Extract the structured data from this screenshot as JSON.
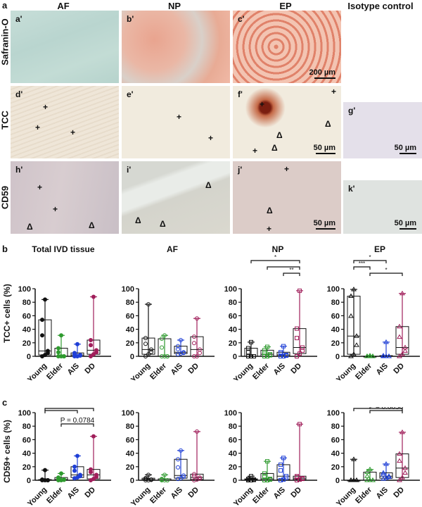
{
  "figure": {
    "panel_a": {
      "letter": "a",
      "columns": [
        "AF",
        "NP",
        "EP",
        "Isotype control"
      ],
      "rows": [
        "Safranin-O",
        "TCC",
        "CD59"
      ],
      "images": [
        {
          "id": "a'",
          "row": "Safranin-O",
          "col": "AF",
          "scale": ""
        },
        {
          "id": "b'",
          "row": "Safranin-O",
          "col": "NP",
          "scale": ""
        },
        {
          "id": "c'",
          "row": "Safranin-O",
          "col": "EP",
          "scale": "200 µm"
        },
        {
          "id": "d'",
          "row": "TCC",
          "col": "AF",
          "scale": ""
        },
        {
          "id": "e'",
          "row": "TCC",
          "col": "NP",
          "scale": ""
        },
        {
          "id": "f'",
          "row": "TCC",
          "col": "EP",
          "scale": "50 µm"
        },
        {
          "id": "g'",
          "row": "TCC",
          "col": "Isotype control",
          "scale": "50 µm"
        },
        {
          "id": "h'",
          "row": "CD59",
          "col": "AF",
          "scale": ""
        },
        {
          "id": "i'",
          "row": "CD59",
          "col": "NP",
          "scale": ""
        },
        {
          "id": "j'",
          "row": "CD59",
          "col": "EP",
          "scale": "50 µm"
        },
        {
          "id": "k'",
          "row": "CD59",
          "col": "Isotype control",
          "scale": "50 µm"
        }
      ],
      "markers": {
        "positive": "+",
        "negative": "Δ"
      }
    },
    "panel_b": {
      "letter": "b",
      "ylabel": "TCC+ cells (%)"
    },
    "panel_c": {
      "letter": "c",
      "ylabel": "CD59+ cells (%)"
    },
    "group_colors": {
      "Young": "#111111",
      "Elder": "#2e9a2e",
      "AIS": "#1f3fd6",
      "DD": "#a01e5a"
    }
  },
  "chart_data": [
    {
      "type": "box",
      "panel": "b",
      "title": "Total IVD tissue",
      "ylabel": "TCC+ cells (%)",
      "categories": [
        "Young",
        "Elder",
        "AIS",
        "DD"
      ],
      "ylim": [
        0,
        100
      ],
      "yticks": [
        0,
        20,
        40,
        60,
        80,
        100
      ],
      "marker": "filled-circle",
      "boxes": [
        {
          "min": 0,
          "q1": 2,
          "median": 8,
          "q3": 54,
          "max": 84
        },
        {
          "min": 0,
          "q1": 0,
          "median": 0,
          "q3": 12,
          "max": 31
        },
        {
          "min": 0,
          "q1": 0,
          "median": 2,
          "q3": 5,
          "max": 18
        },
        {
          "min": 0,
          "q1": 3,
          "median": 9,
          "q3": 24,
          "max": 88
        }
      ],
      "significance": []
    },
    {
      "type": "box",
      "panel": "b",
      "title": "AF",
      "ylabel": "",
      "categories": [
        "Young",
        "Elder",
        "AIS",
        "DD"
      ],
      "ylim": [
        0,
        100
      ],
      "yticks": [
        0,
        20,
        40,
        60,
        80,
        100
      ],
      "marker": "open-circle",
      "boxes": [
        {
          "min": 0,
          "q1": 3,
          "median": 10,
          "q3": 27,
          "max": 77
        },
        {
          "min": 0,
          "q1": 0,
          "median": 0,
          "q3": 26,
          "max": 31
        },
        {
          "min": 3,
          "q1": 4,
          "median": 6,
          "q3": 15,
          "max": 24
        },
        {
          "min": 0,
          "q1": 0,
          "median": 10,
          "q3": 29,
          "max": 56
        }
      ],
      "significance": []
    },
    {
      "type": "box",
      "panel": "b",
      "title": "NP",
      "ylabel": "",
      "categories": [
        "Young",
        "Elder",
        "AIS",
        "DD"
      ],
      "ylim": [
        0,
        100
      ],
      "yticks": [
        0,
        20,
        40,
        60,
        80,
        100
      ],
      "marker": "open-square",
      "boxes": [
        {
          "min": 0,
          "q1": 0,
          "median": 0,
          "q3": 12,
          "max": 21
        },
        {
          "min": 0,
          "q1": 0,
          "median": 3,
          "q3": 9,
          "max": 14
        },
        {
          "min": 0,
          "q1": 0,
          "median": 2,
          "q3": 6,
          "max": 15
        },
        {
          "min": 0,
          "q1": 4,
          "median": 13,
          "q3": 41,
          "max": 97
        }
      ],
      "significance": [
        {
          "from": "Young",
          "to": "DD",
          "label": "*",
          "level": 0
        },
        {
          "from": "Elder",
          "to": "DD",
          "label": "",
          "level": 1
        },
        {
          "from": "AIS",
          "to": "DD",
          "label": "**",
          "level": 2
        }
      ]
    },
    {
      "type": "box",
      "panel": "b",
      "title": "EP",
      "ylabel": "",
      "categories": [
        "Young",
        "Elder",
        "AIS",
        "DD"
      ],
      "ylim": [
        0,
        100
      ],
      "yticks": [
        0,
        20,
        40,
        60,
        80,
        100
      ],
      "marker": "open-triangle",
      "boxes": [
        {
          "min": 0,
          "q1": 3,
          "median": 30,
          "q3": 89,
          "max": 99
        },
        {
          "min": 0,
          "q1": 0,
          "median": 0,
          "q3": 0,
          "max": 1
        },
        {
          "min": 0,
          "q1": 0,
          "median": 0,
          "q3": 1,
          "max": 21
        },
        {
          "min": 0,
          "q1": 3,
          "median": 13,
          "q3": 44,
          "max": 93
        }
      ],
      "significance": [
        {
          "from": "Young",
          "to": "AIS",
          "label": "*",
          "level": 0
        },
        {
          "from": "Young",
          "to": "Elder",
          "label": "***",
          "level": 1
        },
        {
          "from": "Elder",
          "to": "DD",
          "label": "*",
          "level": 2
        }
      ]
    },
    {
      "type": "box",
      "panel": "c",
      "title": "",
      "ylabel": "CD59+ cells (%)",
      "categories": [
        "Young",
        "Elder",
        "AIS",
        "DD"
      ],
      "ylim": [
        0,
        100
      ],
      "yticks": [
        0,
        20,
        40,
        60,
        80,
        100
      ],
      "marker": "filled-circle",
      "boxes": [
        {
          "min": 0,
          "q1": 0,
          "median": 0,
          "q3": 1,
          "max": 15
        },
        {
          "min": 0,
          "q1": 0,
          "median": 1,
          "q3": 4,
          "max": 10
        },
        {
          "min": 3,
          "q1": 4,
          "median": 8,
          "q3": 20,
          "max": 36
        },
        {
          "min": 0,
          "q1": 2,
          "median": 8,
          "q3": 16,
          "max": 65
        }
      ],
      "significance": [
        {
          "from": "Young",
          "to": "DD",
          "label": "*",
          "level": 0
        },
        {
          "from": "Young",
          "to": "AIS",
          "label": "",
          "level": 1
        },
        {
          "from": "Elder",
          "to": "DD",
          "label": "P = 0.0784",
          "level": 2
        }
      ]
    },
    {
      "type": "box",
      "panel": "c",
      "title": "",
      "ylabel": "",
      "categories": [
        "Young",
        "Elder",
        "AIS",
        "DD"
      ],
      "ylim": [
        0,
        100
      ],
      "yticks": [
        0,
        20,
        40,
        60,
        80,
        100
      ],
      "marker": "open-circle",
      "boxes": [
        {
          "min": 0,
          "q1": 0,
          "median": 1,
          "q3": 3,
          "max": 8
        },
        {
          "min": 0,
          "q1": 0,
          "median": 0,
          "q3": 2,
          "max": 8
        },
        {
          "min": 2,
          "q1": 3,
          "median": 7,
          "q3": 31,
          "max": 44
        },
        {
          "min": 0,
          "q1": 1,
          "median": 4,
          "q3": 9,
          "max": 72
        }
      ],
      "significance": []
    },
    {
      "type": "box",
      "panel": "c",
      "title": "",
      "ylabel": "",
      "categories": [
        "Young",
        "Elder",
        "AIS",
        "DD"
      ],
      "ylim": [
        0,
        100
      ],
      "yticks": [
        0,
        20,
        40,
        60,
        80,
        100
      ],
      "marker": "open-square",
      "boxes": [
        {
          "min": 0,
          "q1": 0,
          "median": 1,
          "q3": 2,
          "max": 6
        },
        {
          "min": 0,
          "q1": 0,
          "median": 2,
          "q3": 10,
          "max": 28
        },
        {
          "min": 0,
          "q1": 1,
          "median": 6,
          "q3": 23,
          "max": 33
        },
        {
          "min": 0,
          "q1": 1,
          "median": 3,
          "q3": 6,
          "max": 83
        }
      ],
      "significance": []
    },
    {
      "type": "box",
      "panel": "c",
      "title": "",
      "ylabel": "",
      "categories": [
        "Young",
        "Elder",
        "AIS",
        "DD"
      ],
      "ylim": [
        0,
        100
      ],
      "yticks": [
        0,
        20,
        40,
        60,
        80,
        100
      ],
      "marker": "open-triangle",
      "boxes": [
        {
          "min": 0,
          "q1": 0,
          "median": 0,
          "q3": 0,
          "max": 31
        },
        {
          "min": 0,
          "q1": 0,
          "median": 0,
          "q3": 12,
          "max": 16
        },
        {
          "min": 2,
          "q1": 3,
          "median": 6,
          "q3": 11,
          "max": 24
        },
        {
          "min": 0,
          "q1": 4,
          "median": 18,
          "q3": 39,
          "max": 71
        }
      ],
      "significance": [
        {
          "from": "Young",
          "to": "DD",
          "label": "**",
          "level": 0
        },
        {
          "from": "Elder",
          "to": "DD",
          "label": "P = 0.0656",
          "level": 1
        }
      ]
    }
  ]
}
